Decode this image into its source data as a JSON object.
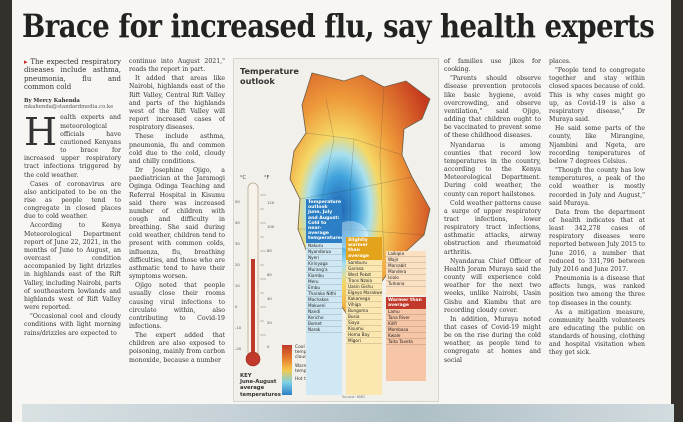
{
  "headline": "Brace for increased flu, say health experts",
  "callout": "The expected respiratory diseases include asthma, pneumonia, flu and common cold",
  "byline_name": "By Mercy Kahenda",
  "byline_email": "mkahenda@standardmedia.co.ke",
  "col1": [
    "ealth experts and meteorological officials have cautioned Kenyans to brace for increased upper respiratory tract infections triggered by the cold weather.",
    "Cases of coronavirus are also anticipated to be on the rise as people tend to congregate in closed places due to cold weather.",
    "According to Kenya Meteorological Department report of June 22, 2021, in the months of June to August, an overcast condition accompanied by light drizzles in highlands east of the Rift Valley, including Nairobi, parts of southeastern lowlands and highlands west of Rift Valley were reported.",
    "\"Occasional cool and cloudy conditions with light morning rains/drizzles are expected to"
  ],
  "col2": [
    "continue into August 2021,\" reads the report in part.",
    "It added that areas like Nairobi, highlands east of the Rift Valley, Central Rift Valley and parts of the highlands west of the Rift Valley will report increased cases of respiratory diseases.",
    "These include asthma, pneumonia, flu and common cold due to the cold, cloudy and chilly conditions.",
    "Dr Josephine Ojigo, a paediatrician at the Jaramogi Oginga Odinga Teaching and Referral Hospital in Kisumu said there was increased number of children with cough and difficulty in breathing. She said during cold weather, children tend to present with common colds, influenza, flu, breathing difficulties, and those who are asthmatic tend to have their symptoms worsen.",
    "Ojigo noted that people usually close their rooms causing viral infections to circulate within, also contributing to Covid-19 infections.",
    "The expert added that children are also exposed to poisoning, mainly from carbon monoxide, because a number"
  ],
  "col3": [
    "of families use jikos for cooking.",
    "\"Parents should observe disease prevention protocols like basic hygiene, avoid overcrowding, and observe ventilation,\" said Ojigo, adding that children ought to be vaccinated to prevent some of these childhood diseases.",
    "Nyandarua is among counties that record low temperatures in the country, according to the Kenya Meteorological Department. During cold weather, the county can report hailstones.",
    "Cold weather patterns cause a surge of upper respiratory tract infections, lower respiratory tract infections, asthmatic attacks, airway obstruction and rheumatoid arthritis.",
    "Nyandarua Chief Officer of Health Joram Muraya said the county will experience cold weather for the next two weeks, unlike Nairobi, Uasin Gishu and Kiambu that are recording cloudy cover.",
    "In addition, Muraya noted that cases of Covid-19 might be on the rise during the cold weather, as people tend to congregate at homes and social"
  ],
  "col4": [
    "places.",
    "\"People tend to congregate together and stay within closed spaces because of cold. This is why cases might go up, as Covid-19 is also a respiratory disease,\" Dr Muraya said.",
    "He said some parts of the county, like Mirangine, Njambini and Ngeta, are recording temperatures of below 7 degrees Celsius.",
    "\"Though the county has low temperatures, a peak of the cold weather is mostly recorded in July and August,\" said Muraya.",
    "Data from the department of health indicates that at least 342,278 cases of respiratory diseases were reported between July 2015 to June 2016, a number that reduced to 331,796 between July 2016 and June 2017.",
    "Pneumonia is a disease that affects lungs, was ranked position two among the three top diseases in the county.",
    "As a mitigation measure, community health volunteers are educating the public on standards of housing, clothing and hospital visitation when they get sick."
  ],
  "graphic": {
    "title_line1": "Temperature",
    "title_line2": "outlook",
    "scale_title": "KEY\nJune-August\naverage\ntemperatures",
    "legend_labels": [
      "Cool temperatures and cloudy skies",
      "Warm temperatures",
      "Hot temperatures"
    ],
    "cool_box_title": "Temperature outlook June, July and August: Cold to near-average temperatures",
    "cool_counties": [
      "Nakuru",
      "Nyandarua",
      "Nyeri",
      "Kirinyaga",
      "Murang'a",
      "Kiambu",
      "Meru",
      "Embu",
      "Tharaka Nithi",
      "Machakos",
      "Makueni",
      "Nandi",
      "Kericho",
      "Bomet",
      "Narok"
    ],
    "mid_box_title": "Slightly warmer than average",
    "mid_counties": [
      "Samburu",
      "Garissa",
      "West Pokot",
      "Trans Nzoia",
      "Uasin Gishu",
      "Elgeyo Marakwet",
      "Kakamega",
      "Vihiga",
      "Bungoma",
      "Busia",
      "Siaya",
      "Kisumu",
      "Homa Bay",
      "Migori"
    ],
    "warm_box_title": "Warmer than average",
    "warm_counties": [
      "Lamu",
      "Tana River",
      "Kilifi",
      "Mombasa",
      "Kwale",
      "Taita Taveta"
    ],
    "north_counties": [
      "Laikipia",
      "Wajir",
      "Marsabit",
      "Mandera",
      "Isiolo",
      "Turkana"
    ],
    "credit": "Source: KMD",
    "thermo_c_label": "°C",
    "thermo_f_label": "°F",
    "thermo_c_ticks": [
      "50",
      "40",
      "30",
      "20",
      "10",
      "0",
      "-10",
      "-20"
    ],
    "thermo_f_ticks": [
      "120",
      "100",
      "80",
      "60",
      "40",
      "20",
      "0"
    ],
    "colors": {
      "cool": "#2c7fc4",
      "light": "#7dd0e6",
      "mid": "#f5c84a",
      "warm": "#e3782b",
      "hot": "#c0392b"
    }
  }
}
